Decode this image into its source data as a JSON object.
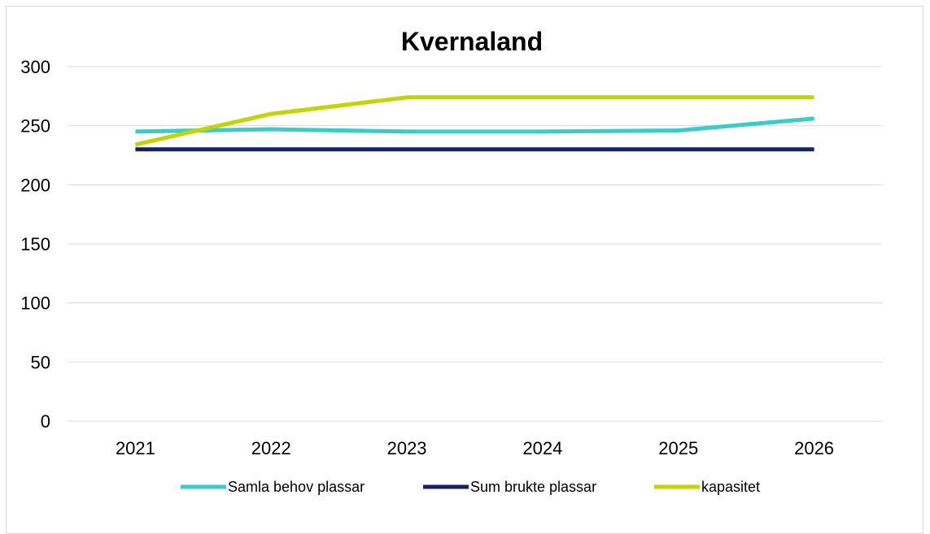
{
  "chart_data": {
    "type": "line",
    "title": "Kvernaland",
    "xlabel": "",
    "ylabel": "",
    "categories": [
      "2021",
      "2022",
      "2023",
      "2024",
      "2025",
      "2026"
    ],
    "ylim": [
      0,
      300
    ],
    "yticks": [
      0,
      50,
      100,
      150,
      200,
      250,
      300
    ],
    "grid": true,
    "legend_position": "bottom",
    "series": [
      {
        "name": "Samla behov plassar",
        "color": "#38CCCC",
        "values": [
          245,
          247,
          245,
          245,
          246,
          256
        ]
      },
      {
        "name": "Sum brukte plassar",
        "color": "#15216B",
        "values": [
          230,
          230,
          230,
          230,
          230,
          230
        ]
      },
      {
        "name": "kapasitet",
        "color": "#C3D400",
        "values": [
          234,
          260,
          274,
          274,
          274,
          274
        ]
      }
    ]
  }
}
